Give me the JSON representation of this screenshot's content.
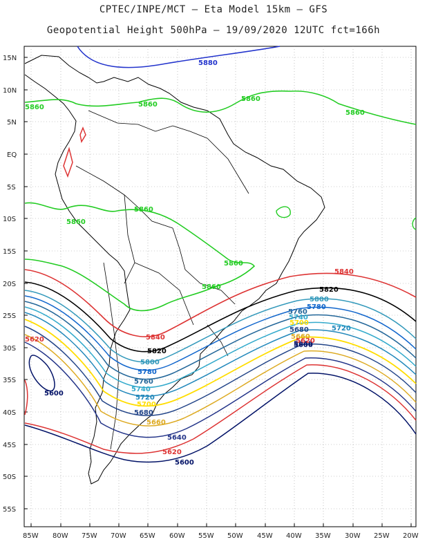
{
  "title_line1": "CPTEC/INPE/MCT –  Eta Model 15km – GFS",
  "title_line2": "Geopotential Height 500hPa – 19/09/2020 12UTC fct=166h",
  "lat_labels": [
    "15N",
    "10N",
    "5N",
    "EQ",
    "5S",
    "10S",
    "15S",
    "20S",
    "25S",
    "30S",
    "35S",
    "40S",
    "45S",
    "50S",
    "55S"
  ],
  "lon_labels": [
    "85W",
    "80W",
    "75W",
    "70W",
    "65W",
    "60W",
    "55W",
    "50W",
    "45W",
    "40W",
    "35W",
    "30W",
    "25W",
    "20W"
  ],
  "contour_labels": [
    {
      "text": "5880",
      "color": "#2233cc"
    },
    {
      "text": "5860",
      "color": "#22cc22"
    },
    {
      "text": "5860",
      "color": "#22cc22"
    },
    {
      "text": "5860",
      "color": "#22cc22"
    },
    {
      "text": "5860",
      "color": "#22cc22"
    },
    {
      "text": "5860",
      "color": "#22cc22"
    },
    {
      "text": "5860",
      "color": "#22cc22"
    },
    {
      "text": "5860",
      "color": "#22cc22"
    },
    {
      "text": "5860",
      "color": "#22cc22"
    },
    {
      "text": "5840",
      "color": "#dd3333"
    },
    {
      "text": "5840",
      "color": "#dd3333"
    },
    {
      "text": "5820",
      "color": "#000000"
    },
    {
      "text": "5820",
      "color": "#000000"
    },
    {
      "text": "5800",
      "color": "#3399bb"
    },
    {
      "text": "5800",
      "color": "#3399bb"
    },
    {
      "text": "5780",
      "color": "#1166cc"
    },
    {
      "text": "5780",
      "color": "#1166cc"
    },
    {
      "text": "5760",
      "color": "#226699"
    },
    {
      "text": "5760",
      "color": "#226699"
    },
    {
      "text": "5740",
      "color": "#33aacc"
    },
    {
      "text": "5740",
      "color": "#33aacc"
    },
    {
      "text": "5720",
      "color": "#2288bb"
    },
    {
      "text": "5720",
      "color": "#2288bb"
    },
    {
      "text": "5700",
      "color": "#ffdd00"
    },
    {
      "text": "5700",
      "color": "#ffdd00"
    },
    {
      "text": "5680",
      "color": "#224488"
    },
    {
      "text": "5680",
      "color": "#224488"
    },
    {
      "text": "5660",
      "color": "#ddaa22"
    },
    {
      "text": "5660",
      "color": "#ddaa22"
    },
    {
      "text": "5640",
      "color": "#223388"
    },
    {
      "text": "5640",
      "color": "#223388"
    },
    {
      "text": "5620",
      "color": "#dd3333"
    },
    {
      "text": "5620",
      "color": "#dd3333"
    },
    {
      "text": "5620",
      "color": "#dd3333"
    },
    {
      "text": "5600",
      "color": "#001166"
    },
    {
      "text": "5600",
      "color": "#001166"
    },
    {
      "text": "5600",
      "color": "#001166"
    }
  ]
}
